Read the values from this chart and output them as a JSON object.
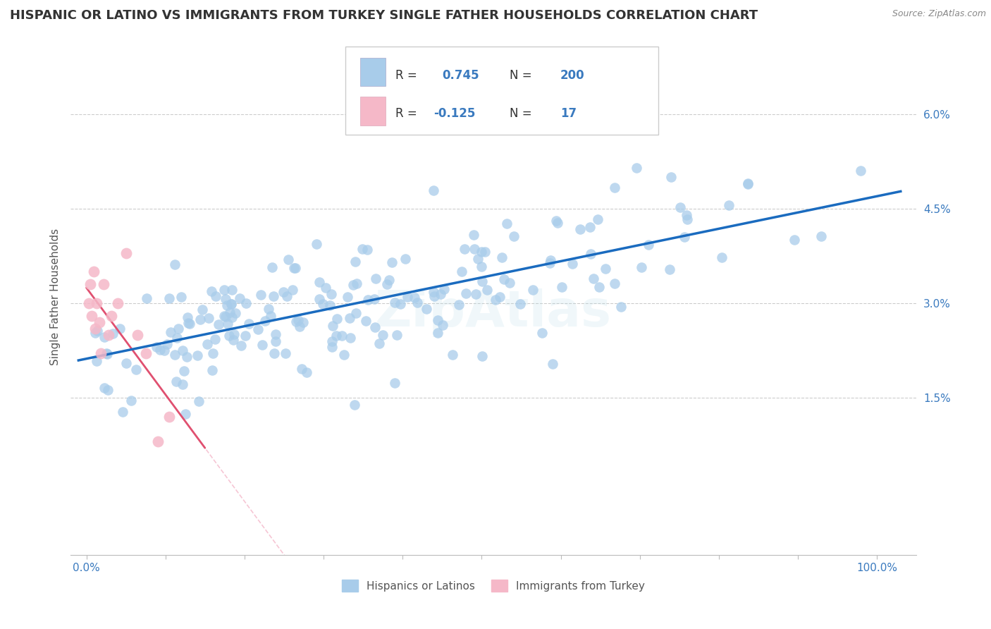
{
  "title": "HISPANIC OR LATINO VS IMMIGRANTS FROM TURKEY SINGLE FATHER HOUSEHOLDS CORRELATION CHART",
  "source_text": "Source: ZipAtlas.com",
  "ylabel": "Single Father Households",
  "x_ticks": [
    0.0,
    0.1,
    0.2,
    0.3,
    0.4,
    0.5,
    0.6,
    0.7,
    0.8,
    0.9,
    1.0
  ],
  "x_tick_labels": [
    "0.0%",
    "",
    "",
    "",
    "",
    "",
    "",
    "",
    "",
    "",
    "100.0%"
  ],
  "y_tick_labels": [
    "1.5%",
    "3.0%",
    "4.5%",
    "6.0%"
  ],
  "y_ticks": [
    0.015,
    0.03,
    0.045,
    0.06
  ],
  "xlim": [
    -0.02,
    1.05
  ],
  "ylim": [
    -0.01,
    0.072
  ],
  "blue_R": 0.745,
  "blue_N": 200,
  "pink_R": -0.125,
  "pink_N": 17,
  "blue_dot_color": "#a8ccea",
  "pink_dot_color": "#f5b8c8",
  "blue_line_color": "#1a6bbf",
  "pink_line_color": "#e05070",
  "pink_line_dashed_color": "#f0a0b8",
  "watermark": "ZipAtlas",
  "legend_label_blue": "Hispanics or Latinos",
  "legend_label_pink": "Immigrants from Turkey",
  "background_color": "#ffffff",
  "grid_color": "#cccccc",
  "title_fontsize": 13,
  "axis_label_fontsize": 11,
  "legend_text_color": "#3a7abf",
  "legend_label_color": "#333333"
}
